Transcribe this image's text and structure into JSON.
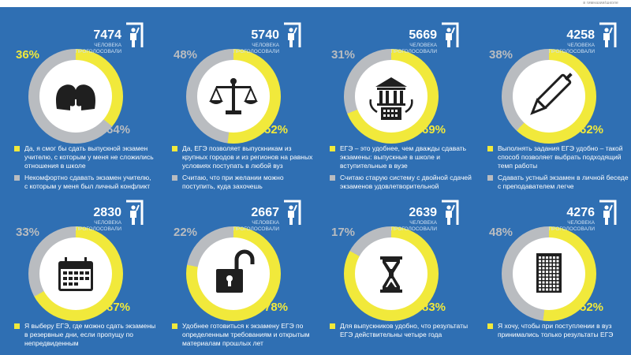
{
  "top_text": "в гимназии/школе",
  "colors": {
    "background": "#2f6fb3",
    "yellow": "#f1e93b",
    "gray": "#b9bcc0",
    "white": "#ffffff"
  },
  "vote_label": "ЧЕЛОВЕКА ПРОГОЛОСОВАЛИ",
  "panels": [
    {
      "votes": "7474",
      "icon": "two-heads-icon",
      "yellow_pct": "36%",
      "gray_pct": "64%",
      "yellow_value": 36,
      "legend_yellow": "Да, я смог бы сдать выпускной экзамен учителю, с которым у меня не сложились отношения в школе",
      "legend_gray": "Некомфортно сдавать экзамен учителю, с которым у меня был личный конфликт"
    },
    {
      "votes": "5740",
      "icon": "scales-icon",
      "yellow_pct": "52%",
      "gray_pct": "48%",
      "yellow_value": 52,
      "legend_yellow": "Да, ЕГЭ позволяет выпускникам из крупных городов и из регионов на равных условиях поступать в любой вуз",
      "legend_gray": "Считаю, что при желании можно поступить, куда захочешь"
    },
    {
      "votes": "5669",
      "icon": "university-icon",
      "yellow_pct": "69%",
      "gray_pct": "31%",
      "yellow_value": 69,
      "legend_yellow": "ЕГЭ – это удобнее, чем дважды сдавать экзамены: выпускные в школе и вступительные в вузе",
      "legend_gray": "Считаю старую систему с двойной сдачей экзаменов удовлетворительной"
    },
    {
      "votes": "4258",
      "icon": "pen-icon",
      "yellow_pct": "62%",
      "gray_pct": "38%",
      "yellow_value": 62,
      "legend_yellow": "Выполнять задания ЕГЭ удобно – такой способ позволяет выбрать подходящий темп работы",
      "legend_gray": "Сдавать устный экзамен в личной беседе с преподавателем легче"
    },
    {
      "votes": "2830",
      "icon": "calendar-icon",
      "yellow_pct": "67%",
      "gray_pct": "33%",
      "yellow_value": 67,
      "legend_yellow": "Я выберу ЕГЭ, где можно сдать экзамены в резервные дни, если пропущу по непредвиденным",
      "legend_gray": ""
    },
    {
      "votes": "2667",
      "icon": "padlock-icon",
      "yellow_pct": "78%",
      "gray_pct": "22%",
      "yellow_value": 78,
      "legend_yellow": "Удобнее готовиться к экзамену ЕГЭ по определенным требованиям и открытым материалам прошлых лет",
      "legend_gray": ""
    },
    {
      "votes": "2639",
      "icon": "hourglass-icon",
      "yellow_pct": "83%",
      "gray_pct": "17%",
      "yellow_value": 83,
      "legend_yellow": "Для выпускников удобно, что результаты ЕГЭ действительны четыре года",
      "legend_gray": ""
    },
    {
      "votes": "4276",
      "icon": "document-icon",
      "yellow_pct": "52%",
      "gray_pct": "48%",
      "yellow_value": 52,
      "legend_yellow": "Я хочу, чтобы при поступлении в вуз принимались только результаты ЕГЭ",
      "legend_gray": ""
    }
  ]
}
